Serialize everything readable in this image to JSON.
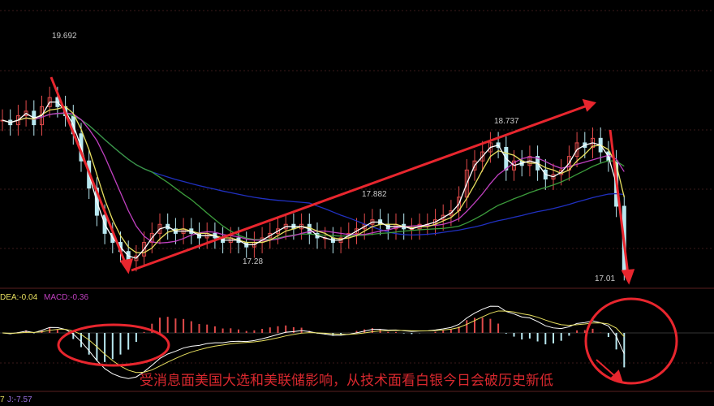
{
  "chart_data": {
    "type": "candlestick",
    "title": "",
    "closes": [
      18.75,
      18.7,
      18.8,
      18.85,
      18.7,
      18.9,
      19.0,
      18.9,
      18.8,
      18.6,
      18.3,
      18.0,
      17.7,
      17.5,
      17.4,
      17.3,
      17.2,
      17.25,
      17.4,
      17.5,
      17.6,
      17.55,
      17.5,
      17.55,
      17.5,
      17.45,
      17.5,
      17.45,
      17.4,
      17.45,
      17.4,
      17.35,
      17.4,
      17.45,
      17.5,
      17.55,
      17.6,
      17.55,
      17.6,
      17.5,
      17.45,
      17.45,
      17.4,
      17.45,
      17.5,
      17.55,
      17.6,
      17.65,
      17.6,
      17.55,
      17.6,
      17.55,
      17.55,
      17.6,
      17.6,
      17.65,
      17.7,
      17.75,
      17.9,
      18.2,
      18.3,
      18.4,
      18.5,
      18.45,
      18.2,
      18.3,
      18.25,
      18.35,
      18.2,
      18.1,
      18.15,
      18.2,
      18.35,
      18.5,
      18.45,
      18.55,
      18.4,
      18.3,
      17.8,
      17.1
    ],
    "price_labels": {
      "high_1": "19.692",
      "low_1": "17.28",
      "high_2": "17.882",
      "high_3": "18.737",
      "low_last": "17.01"
    },
    "ylim": [
      16.9,
      19.8
    ],
    "grid": true,
    "colors": {
      "up": "#e04a4a",
      "down": "#b8e8f0",
      "ma_blue": "#2030c0",
      "ma_green": "#3c9c3c",
      "ma_magenta": "#c040c0",
      "ma_yellow": "#e8e060",
      "ma_white": "#ffffff",
      "arrow": "#e8262e"
    }
  },
  "indicator": {
    "dea_label": "DEA:-0.04",
    "macd_label": "MACD:-0.36",
    "kdj_label_prefix": "7",
    "kdj_j_label": "J:-7.57"
  },
  "annotation": {
    "caption": "受消息面美国大选和美联储影响，从技术面看白银今日会破历史新低"
  }
}
